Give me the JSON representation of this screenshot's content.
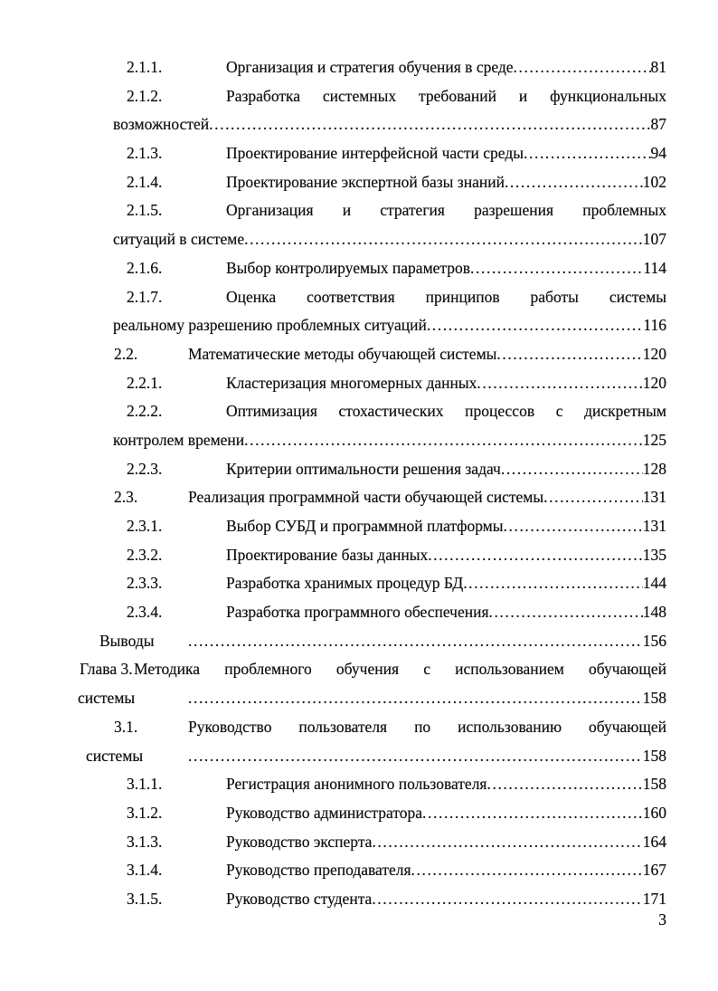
{
  "page": {
    "footer_page_number": "3"
  },
  "toc": {
    "lines": [
      {
        "type": "l3",
        "num": "2.1.1.",
        "text": "Организация и стратегия обучения в среде",
        "page": "81"
      },
      {
        "type": "l3",
        "num": "2.1.2.",
        "text": "Разработка системных требований и функциональных",
        "justify": true
      },
      {
        "type": "l3c",
        "text": "возможностей",
        "page": "87"
      },
      {
        "type": "l3",
        "num": "2.1.3.",
        "text": "Проектирование интерфейсной части среды",
        "page": "94"
      },
      {
        "type": "l3",
        "num": "2.1.4.",
        "text": "Проектирование экспертной базы знаний",
        "page": "102"
      },
      {
        "type": "l3",
        "num": "2.1.5.",
        "text": "Организация и стратегия разрешения проблемных",
        "justify": true
      },
      {
        "type": "l3c",
        "text": "ситуаций в системе",
        "page": "107"
      },
      {
        "type": "l3",
        "num": "2.1.6.",
        "text": "Выбор контролируемых параметров",
        "page": "114"
      },
      {
        "type": "l3",
        "num": "2.1.7.",
        "text": "Оценка соответствия принципов работы системы",
        "justify": true
      },
      {
        "type": "l3c",
        "text": "реальному разрешению проблемных ситуаций",
        "page": "116"
      },
      {
        "type": "l2",
        "num": "2.2.",
        "text": "Математические методы обучающей системы",
        "page": "120"
      },
      {
        "type": "l3",
        "num": "2.2.1.",
        "text": "Кластеризация многомерных данных",
        "page": "120"
      },
      {
        "type": "l3",
        "num": "2.2.2.",
        "text": "Оптимизация стохастических процессов с дискретным",
        "justify": true
      },
      {
        "type": "l3c",
        "text": "контролем времени",
        "page": "125"
      },
      {
        "type": "l3",
        "num": "2.2.3.",
        "text": "Критерии оптимальности решения задач",
        "page": "128"
      },
      {
        "type": "l2",
        "num": "2.3.",
        "text": "Реализация программной части обучающей системы",
        "page": "131"
      },
      {
        "type": "l3",
        "num": "2.3.1.",
        "text": "Выбор СУБД и программной платформы",
        "page": "131"
      },
      {
        "type": "l3",
        "num": "2.3.2.",
        "text": "Проектирование базы данных",
        "page": "135"
      },
      {
        "type": "l3",
        "num": "2.3.3.",
        "text": "Разработка хранимых процедур БД",
        "page": "144"
      },
      {
        "type": "l3",
        "num": "2.3.4.",
        "text": "Разработка программного обеспечения",
        "page": "148"
      },
      {
        "type": "v",
        "num": "Выводы",
        "text": "",
        "page": "156"
      },
      {
        "type": "g",
        "num": "Глава 3.",
        "text": "Методика проблемного обучения с использованием обучающей",
        "justify": true
      },
      {
        "type": "gc",
        "text": "системы",
        "page": "158"
      },
      {
        "type": "l2",
        "num": "3.1.",
        "text": "Руководство пользователя по использованию обучающей",
        "justify": true
      },
      {
        "type": "l2c",
        "text": "системы",
        "page": "158"
      },
      {
        "type": "l3",
        "num": "3.1.1.",
        "text": "Регистрация анонимного пользователя",
        "page": "158"
      },
      {
        "type": "l3",
        "num": "3.1.2.",
        "text": "Руководство администратора",
        "page": "160"
      },
      {
        "type": "l3",
        "num": "3.1.3.",
        "text": "Руководство эксперта",
        "page": "164"
      },
      {
        "type": "l3",
        "num": "3.1.4.",
        "text": "Руководство преподавателя",
        "page": "167"
      },
      {
        "type": "l3",
        "num": "3.1.5.",
        "text": "Руководство студента",
        "page": "171"
      }
    ]
  }
}
